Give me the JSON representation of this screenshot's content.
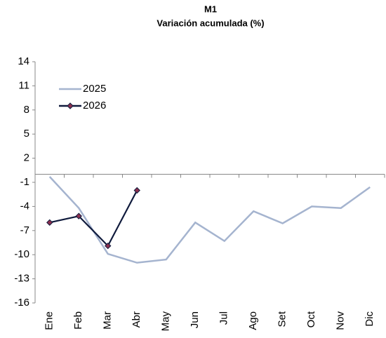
{
  "chart_data": {
    "type": "line",
    "title": "M1",
    "subtitle": "Variación acumulada (%)",
    "categories": [
      "Ene",
      "Feb",
      "Mar",
      "Abr",
      "May",
      "Jun",
      "Jul",
      "Ago",
      "Set",
      "Oct",
      "Nov",
      "Dic"
    ],
    "series": [
      {
        "name": "2025",
        "color": "#a5b4cf",
        "values": [
          -0.3,
          -4.2,
          -9.9,
          -11.0,
          -10.6,
          -6.0,
          -8.3,
          -4.6,
          -6.1,
          -4.0,
          -4.2,
          -1.6
        ]
      },
      {
        "name": "2026",
        "color": "#0f1a3c",
        "marker": "diamond",
        "values": [
          -6.0,
          -5.2,
          -8.9,
          -2.0,
          null,
          null,
          null,
          null,
          null,
          null,
          null,
          null
        ]
      }
    ],
    "ylim": [
      -16,
      14
    ],
    "yticks": [
      14,
      11,
      8,
      5,
      2,
      -1,
      -4,
      -7,
      -10,
      -13,
      -16
    ],
    "legend": "upper left"
  }
}
